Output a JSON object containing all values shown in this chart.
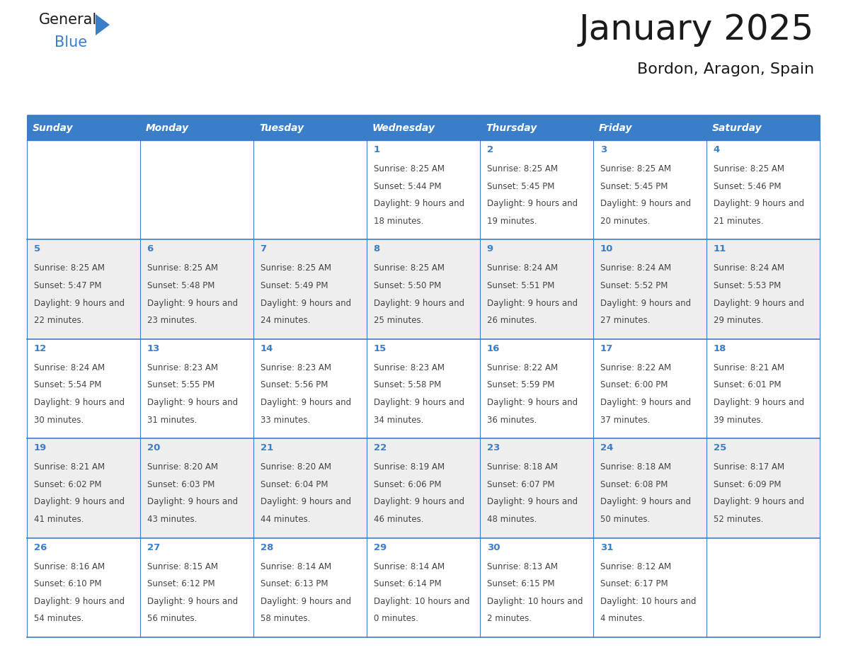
{
  "title": "January 2025",
  "subtitle": "Bordon, Aragon, Spain",
  "header_bg": "#3A7DC9",
  "header_text_color": "#FFFFFF",
  "row_bg_even": "#FFFFFF",
  "row_bg_odd": "#EEEEEE",
  "border_color": "#3A7DC9",
  "text_color": "#444444",
  "day_num_color": "#3A7DC9",
  "day_headers": [
    "Sunday",
    "Monday",
    "Tuesday",
    "Wednesday",
    "Thursday",
    "Friday",
    "Saturday"
  ],
  "days": [
    {
      "day": 1,
      "col": 3,
      "row": 0,
      "sunrise": "8:25 AM",
      "sunset": "5:44 PM",
      "daylight": "9 hours and 18 minutes."
    },
    {
      "day": 2,
      "col": 4,
      "row": 0,
      "sunrise": "8:25 AM",
      "sunset": "5:45 PM",
      "daylight": "9 hours and 19 minutes."
    },
    {
      "day": 3,
      "col": 5,
      "row": 0,
      "sunrise": "8:25 AM",
      "sunset": "5:45 PM",
      "daylight": "9 hours and 20 minutes."
    },
    {
      "day": 4,
      "col": 6,
      "row": 0,
      "sunrise": "8:25 AM",
      "sunset": "5:46 PM",
      "daylight": "9 hours and 21 minutes."
    },
    {
      "day": 5,
      "col": 0,
      "row": 1,
      "sunrise": "8:25 AM",
      "sunset": "5:47 PM",
      "daylight": "9 hours and 22 minutes."
    },
    {
      "day": 6,
      "col": 1,
      "row": 1,
      "sunrise": "8:25 AM",
      "sunset": "5:48 PM",
      "daylight": "9 hours and 23 minutes."
    },
    {
      "day": 7,
      "col": 2,
      "row": 1,
      "sunrise": "8:25 AM",
      "sunset": "5:49 PM",
      "daylight": "9 hours and 24 minutes."
    },
    {
      "day": 8,
      "col": 3,
      "row": 1,
      "sunrise": "8:25 AM",
      "sunset": "5:50 PM",
      "daylight": "9 hours and 25 minutes."
    },
    {
      "day": 9,
      "col": 4,
      "row": 1,
      "sunrise": "8:24 AM",
      "sunset": "5:51 PM",
      "daylight": "9 hours and 26 minutes."
    },
    {
      "day": 10,
      "col": 5,
      "row": 1,
      "sunrise": "8:24 AM",
      "sunset": "5:52 PM",
      "daylight": "9 hours and 27 minutes."
    },
    {
      "day": 11,
      "col": 6,
      "row": 1,
      "sunrise": "8:24 AM",
      "sunset": "5:53 PM",
      "daylight": "9 hours and 29 minutes."
    },
    {
      "day": 12,
      "col": 0,
      "row": 2,
      "sunrise": "8:24 AM",
      "sunset": "5:54 PM",
      "daylight": "9 hours and 30 minutes."
    },
    {
      "day": 13,
      "col": 1,
      "row": 2,
      "sunrise": "8:23 AM",
      "sunset": "5:55 PM",
      "daylight": "9 hours and 31 minutes."
    },
    {
      "day": 14,
      "col": 2,
      "row": 2,
      "sunrise": "8:23 AM",
      "sunset": "5:56 PM",
      "daylight": "9 hours and 33 minutes."
    },
    {
      "day": 15,
      "col": 3,
      "row": 2,
      "sunrise": "8:23 AM",
      "sunset": "5:58 PM",
      "daylight": "9 hours and 34 minutes."
    },
    {
      "day": 16,
      "col": 4,
      "row": 2,
      "sunrise": "8:22 AM",
      "sunset": "5:59 PM",
      "daylight": "9 hours and 36 minutes."
    },
    {
      "day": 17,
      "col": 5,
      "row": 2,
      "sunrise": "8:22 AM",
      "sunset": "6:00 PM",
      "daylight": "9 hours and 37 minutes."
    },
    {
      "day": 18,
      "col": 6,
      "row": 2,
      "sunrise": "8:21 AM",
      "sunset": "6:01 PM",
      "daylight": "9 hours and 39 minutes."
    },
    {
      "day": 19,
      "col": 0,
      "row": 3,
      "sunrise": "8:21 AM",
      "sunset": "6:02 PM",
      "daylight": "9 hours and 41 minutes."
    },
    {
      "day": 20,
      "col": 1,
      "row": 3,
      "sunrise": "8:20 AM",
      "sunset": "6:03 PM",
      "daylight": "9 hours and 43 minutes."
    },
    {
      "day": 21,
      "col": 2,
      "row": 3,
      "sunrise": "8:20 AM",
      "sunset": "6:04 PM",
      "daylight": "9 hours and 44 minutes."
    },
    {
      "day": 22,
      "col": 3,
      "row": 3,
      "sunrise": "8:19 AM",
      "sunset": "6:06 PM",
      "daylight": "9 hours and 46 minutes."
    },
    {
      "day": 23,
      "col": 4,
      "row": 3,
      "sunrise": "8:18 AM",
      "sunset": "6:07 PM",
      "daylight": "9 hours and 48 minutes."
    },
    {
      "day": 24,
      "col": 5,
      "row": 3,
      "sunrise": "8:18 AM",
      "sunset": "6:08 PM",
      "daylight": "9 hours and 50 minutes."
    },
    {
      "day": 25,
      "col": 6,
      "row": 3,
      "sunrise": "8:17 AM",
      "sunset": "6:09 PM",
      "daylight": "9 hours and 52 minutes."
    },
    {
      "day": 26,
      "col": 0,
      "row": 4,
      "sunrise": "8:16 AM",
      "sunset": "6:10 PM",
      "daylight": "9 hours and 54 minutes."
    },
    {
      "day": 27,
      "col": 1,
      "row": 4,
      "sunrise": "8:15 AM",
      "sunset": "6:12 PM",
      "daylight": "9 hours and 56 minutes."
    },
    {
      "day": 28,
      "col": 2,
      "row": 4,
      "sunrise": "8:14 AM",
      "sunset": "6:13 PM",
      "daylight": "9 hours and 58 minutes."
    },
    {
      "day": 29,
      "col": 3,
      "row": 4,
      "sunrise": "8:14 AM",
      "sunset": "6:14 PM",
      "daylight": "10 hours and 0 minutes."
    },
    {
      "day": 30,
      "col": 4,
      "row": 4,
      "sunrise": "8:13 AM",
      "sunset": "6:15 PM",
      "daylight": "10 hours and 2 minutes."
    },
    {
      "day": 31,
      "col": 5,
      "row": 4,
      "sunrise": "8:12 AM",
      "sunset": "6:17 PM",
      "daylight": "10 hours and 4 minutes."
    }
  ],
  "num_rows": 5,
  "logo_text_general": "General",
  "logo_text_blue": "Blue",
  "logo_triangle_color": "#3A7DC9",
  "logo_general_color": "#1A1A1A",
  "logo_blue_color": "#3A7DC9"
}
